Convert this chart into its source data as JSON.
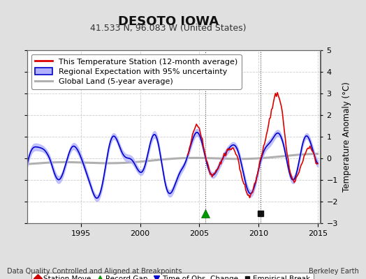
{
  "title": "DESOTO IOWA",
  "subtitle": "41.533 N, 96.083 W (United States)",
  "ylabel": "Temperature Anomaly (°C)",
  "xlabel_note": "Data Quality Controlled and Aligned at Breakpoints",
  "credit": "Berkeley Earth",
  "ylim": [
    -3,
    5
  ],
  "xlim": [
    1990.5,
    2015.2
  ],
  "yticks": [
    -3,
    -2,
    -1,
    0,
    1,
    2,
    3,
    4,
    5
  ],
  "xticks": [
    1995,
    2000,
    2005,
    2010,
    2015
  ],
  "bg_color": "#e0e0e0",
  "plot_bg_color": "#ffffff",
  "station_color": "#dd0000",
  "regional_color": "#0000cc",
  "regional_fill_color": "#b0b0ff",
  "global_color": "#b0b0b0",
  "legend_labels": [
    "This Temperature Station (12-month average)",
    "Regional Expectation with 95% uncertainty",
    "Global Land (5-year average)"
  ],
  "marker_record_gap_x": 2005.5,
  "marker_record_gap_y": -2.55,
  "marker_empirical_break_x": 2010.15,
  "marker_empirical_break_y": -2.55,
  "grid_color": "#cccccc",
  "title_fontsize": 13,
  "subtitle_fontsize": 9,
  "tick_fontsize": 8,
  "legend_fontsize": 8
}
